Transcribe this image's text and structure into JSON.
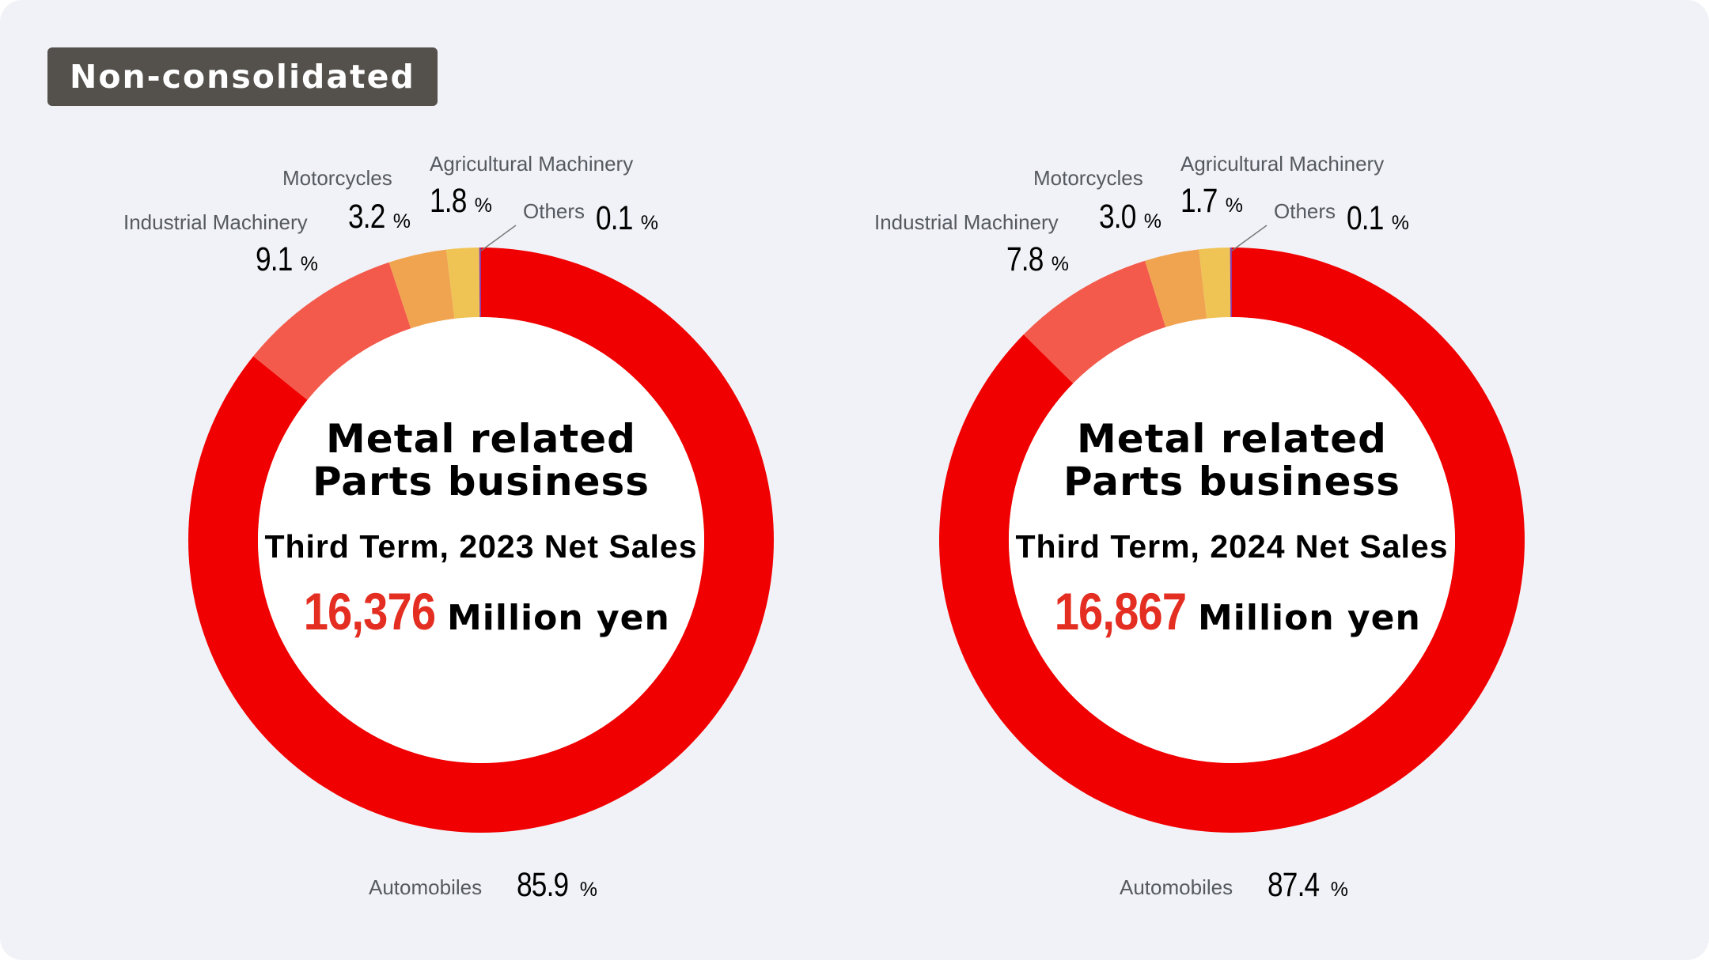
{
  "badge": "Non-consolidated",
  "colors": {
    "Automobiles": "#f00000",
    "Industrial Machinery": "#f35a4c",
    "Motorcycles": "#f0a450",
    "Agricultural Machinery": "#efc454",
    "Others": "#8b3fa6",
    "amount": "#e32e21",
    "badge_bg": "#54504c",
    "panel_bg": "#f1f2f7"
  },
  "percent_symbol": "%",
  "chart_data": [
    {
      "type": "pie",
      "donut": true,
      "title_line1": "Metal related",
      "title_line2": "Parts business",
      "subtitle": "Third Term, 2023 Net Sales",
      "amount": "16,376",
      "unit": "Million yen",
      "categories": [
        "Automobiles",
        "Industrial Machinery",
        "Motorcycles",
        "Agricultural Machinery",
        "Others"
      ],
      "values": [
        85.9,
        9.1,
        3.2,
        1.8,
        0.1
      ],
      "value_labels": [
        "85.9",
        "9.1",
        "3.2",
        "1.8",
        "0.1"
      ]
    },
    {
      "type": "pie",
      "donut": true,
      "title_line1": "Metal related",
      "title_line2": "Parts business",
      "subtitle": "Third Term, 2024 Net Sales",
      "amount": "16,867",
      "unit": "Million yen",
      "categories": [
        "Automobiles",
        "Industrial Machinery",
        "Motorcycles",
        "Agricultural Machinery",
        "Others"
      ],
      "values": [
        87.4,
        7.8,
        3.0,
        1.7,
        0.1
      ],
      "value_labels": [
        "87.4",
        "7.8",
        "3.0",
        "1.7",
        "0.1"
      ]
    }
  ]
}
